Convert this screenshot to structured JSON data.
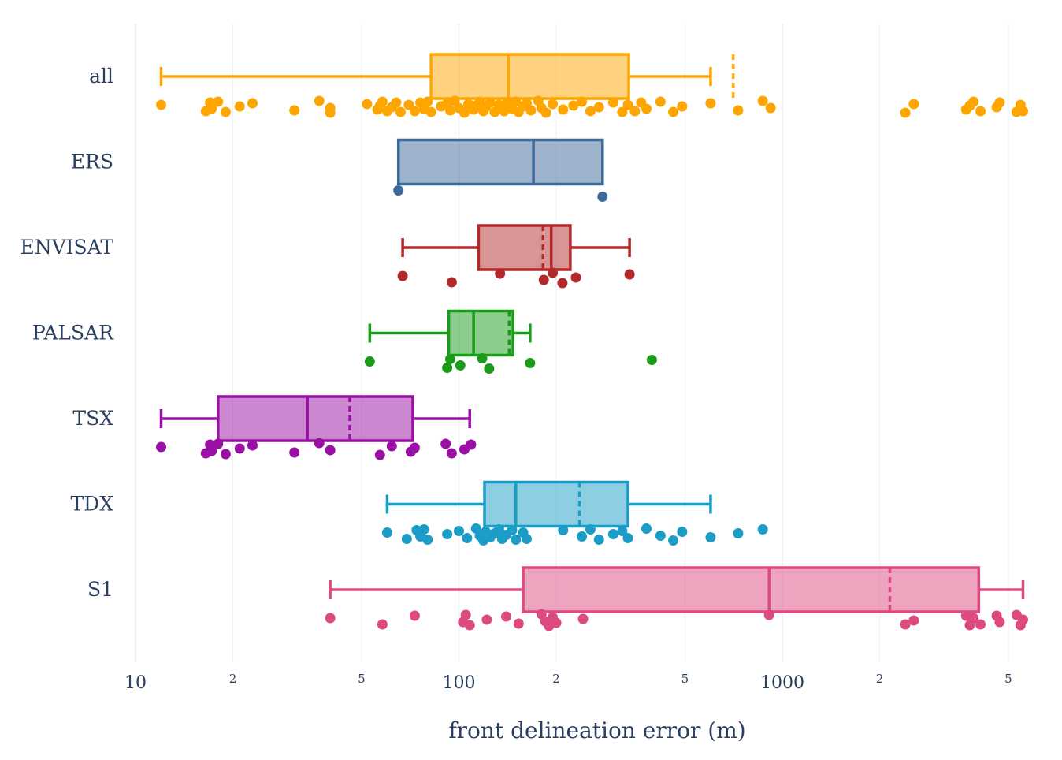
{
  "chart_data": {
    "type": "box",
    "orientation": "horizontal",
    "xlabel": "front delineation error (m)",
    "xscale": "log",
    "xlim": [
      10,
      6000
    ],
    "x_tick_labels": [
      "10",
      "100",
      "1000"
    ],
    "x_minor_tick_labels": [
      "2",
      "5",
      "2",
      "5",
      "2",
      "5"
    ],
    "grid": true,
    "show_points": "all",
    "show_mean": true,
    "series": [
      {
        "name": "all",
        "color": "#ffa500",
        "min": 12,
        "q1": 82,
        "median": 142,
        "q3": 335,
        "max": 600,
        "mean": 705,
        "points": [
          12,
          16.5,
          17,
          17.2,
          18,
          19,
          21,
          23,
          31,
          37,
          40,
          40,
          52,
          56,
          57,
          58,
          60,
          62,
          64,
          66,
          70,
          73,
          76,
          78,
          80,
          82,
          88,
          92,
          94,
          97,
          100,
          104,
          107,
          111,
          113,
          116,
          119,
          121,
          125,
          129,
          133,
          138,
          141,
          146,
          150,
          153,
          158,
          162,
          167,
          176,
          180,
          186,
          195,
          210,
          226,
          240,
          255,
          271,
          300,
          320,
          333,
          350,
          366,
          380,
          420,
          460,
          490,
          600,
          730,
          870,
          920,
          2400,
          2550,
          3700,
          3800,
          3900,
          4100,
          4600,
          4700,
          5300,
          5450,
          5550
        ]
      },
      {
        "name": "ERS",
        "color": "#3e6a9a",
        "min": 65,
        "q1": 65,
        "median": 170,
        "q3": 278,
        "max": 278,
        "points": [
          65,
          278
        ]
      },
      {
        "name": "ENVISAT",
        "color": "#b3292b",
        "min": 67,
        "q1": 115,
        "median": 193,
        "q3": 221,
        "max": 337,
        "mean": 182,
        "points": [
          67,
          95,
          134,
          183,
          195,
          209,
          230,
          337
        ]
      },
      {
        "name": "PALSAR",
        "color": "#1a9b1a",
        "min": 53,
        "q1": 93,
        "median": 111,
        "q3": 147,
        "max": 166,
        "mean": 143,
        "points": [
          53,
          92,
          94,
          101,
          118,
          124,
          166,
          395
        ]
      },
      {
        "name": "TSX",
        "color": "#9a10a4",
        "min": 12,
        "q1": 18,
        "median": 34,
        "q3": 72,
        "max": 108,
        "mean": 46,
        "points": [
          12,
          16.5,
          17,
          17.2,
          18,
          19,
          21,
          23,
          31,
          37,
          40,
          57,
          62,
          71,
          73,
          91,
          95,
          104,
          109
        ]
      },
      {
        "name": "TDX",
        "color": "#1b9dc8",
        "min": 60,
        "q1": 120,
        "median": 150,
        "q3": 333,
        "max": 600,
        "mean": 236,
        "points": [
          60,
          69,
          74,
          76,
          78,
          80,
          92,
          100,
          106,
          113,
          116,
          119,
          121,
          125,
          129,
          133,
          136,
          140,
          146,
          150,
          158,
          162,
          210,
          240,
          255,
          271,
          300,
          320,
          333,
          380,
          420,
          460,
          490,
          600,
          730,
          870
        ]
      },
      {
        "name": "S1",
        "color": "#dd4a80",
        "min": 40,
        "q1": 158,
        "median": 910,
        "q3": 4050,
        "max": 5550,
        "mean": 2150,
        "points": [
          40,
          58,
          73,
          103,
          105,
          108,
          122,
          140,
          153,
          180,
          185,
          190,
          195,
          200,
          242,
          910,
          2400,
          2550,
          3700,
          3800,
          3900,
          4100,
          4600,
          4700,
          5300,
          5450,
          5550
        ]
      }
    ]
  }
}
